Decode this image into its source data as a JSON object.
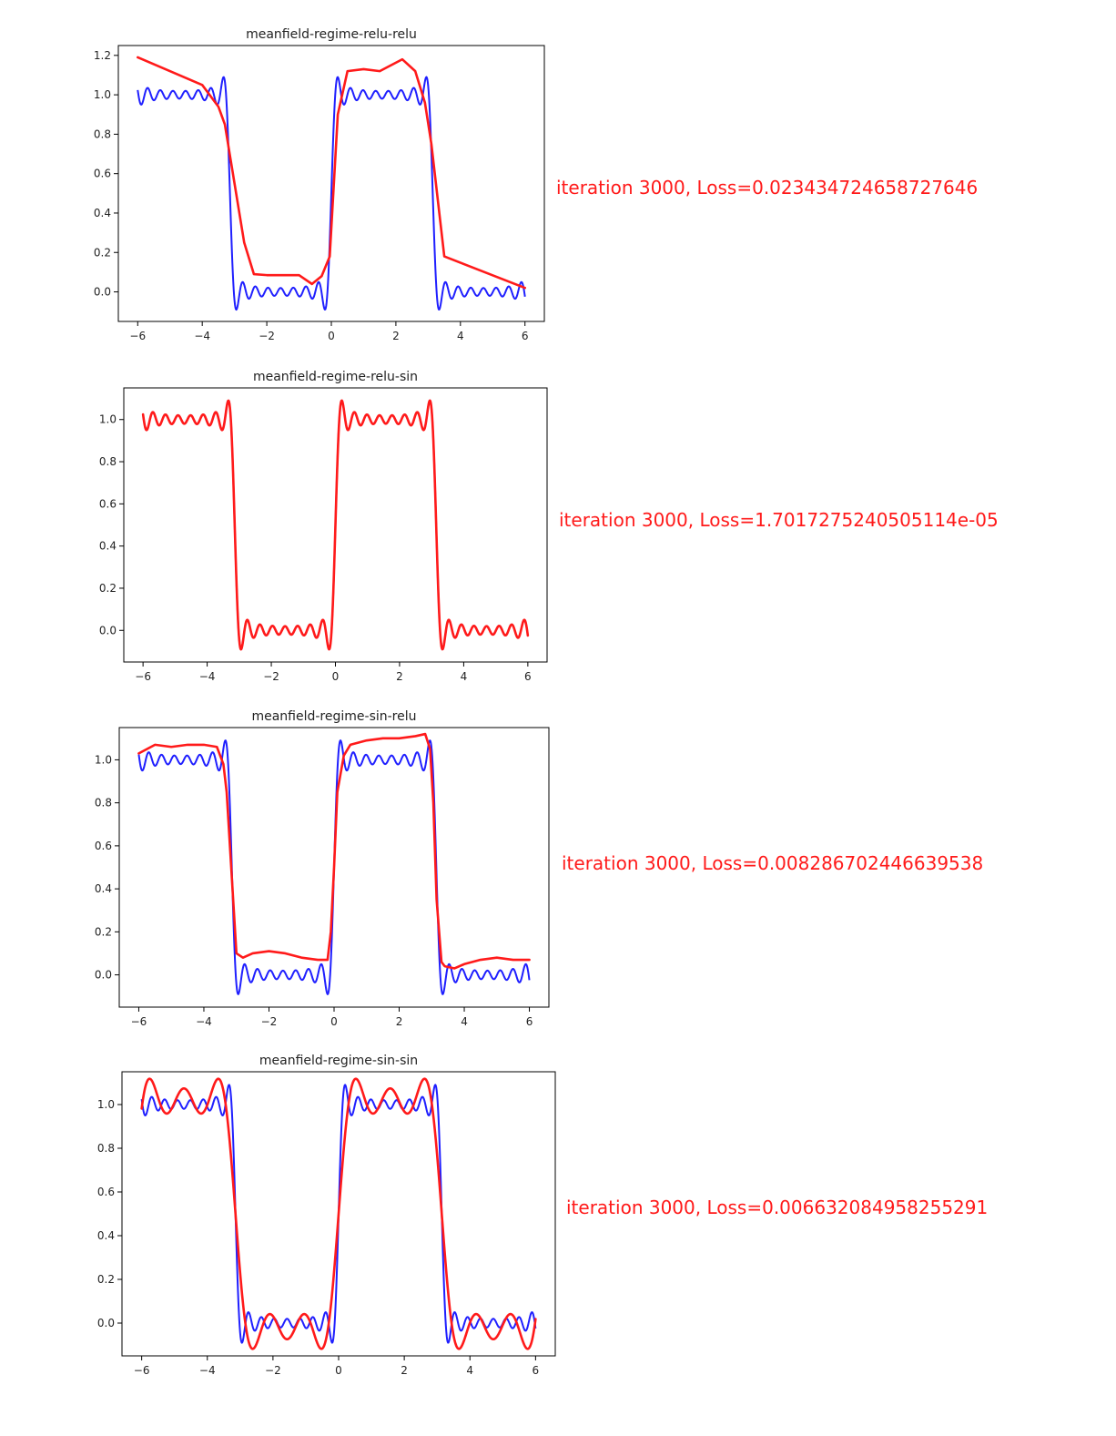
{
  "colors": {
    "target": "#1f1fff",
    "fit": "#ff1a1a",
    "loss_text": "#ff1a1a"
  },
  "chart_data": [
    {
      "type": "line",
      "title": "meanfield-regime-relu-relu",
      "xlim": [
        -6.6,
        6.6
      ],
      "ylim": [
        -0.15,
        1.25
      ],
      "xticks": [
        -6,
        -4,
        -2,
        0,
        2,
        4,
        6
      ],
      "yticks": [
        0.0,
        0.2,
        0.4,
        0.6,
        0.8,
        1.0,
        1.2
      ],
      "target": {
        "harmonics": 15
      },
      "fit": {
        "x": [
          -6.0,
          -4.0,
          -3.5,
          -3.3,
          -3.0,
          -2.7,
          -2.4,
          -2.0,
          -1.5,
          -1.0,
          -0.6,
          -0.3,
          -0.05,
          0.2,
          0.5,
          1.0,
          1.5,
          2.2,
          2.6,
          2.9,
          3.1,
          3.5,
          6.0
        ],
        "y": [
          1.19,
          1.05,
          0.94,
          0.85,
          0.55,
          0.25,
          0.09,
          0.085,
          0.085,
          0.085,
          0.04,
          0.08,
          0.18,
          0.9,
          1.12,
          1.13,
          1.12,
          1.18,
          1.12,
          0.96,
          0.75,
          0.18,
          0.02
        ]
      },
      "annotation": "iteration 3000, Loss=0.023434724658727646"
    },
    {
      "type": "line",
      "title": "meanfield-regime-relu-sin",
      "xlim": [
        -6.6,
        6.6
      ],
      "ylim": [
        -0.15,
        1.15
      ],
      "xticks": [
        -6,
        -4,
        -2,
        0,
        2,
        4,
        6
      ],
      "yticks": [
        0.0,
        0.2,
        0.4,
        0.6,
        0.8,
        1.0
      ],
      "target": {
        "harmonics": 15
      },
      "fit": {
        "mode": "target",
        "harmonics": 15
      },
      "annotation": "iteration 3000, Loss=1.7017275240505114e-05"
    },
    {
      "type": "line",
      "title": "meanfield-regime-sin-relu",
      "xlim": [
        -6.6,
        6.6
      ],
      "ylim": [
        -0.15,
        1.15
      ],
      "xticks": [
        -6,
        -4,
        -2,
        0,
        2,
        4,
        6
      ],
      "yticks": [
        0.0,
        0.2,
        0.4,
        0.6,
        0.8,
        1.0
      ],
      "target": {
        "harmonics": 15
      },
      "fit": {
        "x": [
          -6.0,
          -5.5,
          -5.0,
          -4.5,
          -4.0,
          -3.6,
          -3.4,
          -3.3,
          -3.1,
          -3.0,
          -2.8,
          -2.5,
          -2.0,
          -1.5,
          -1.0,
          -0.5,
          -0.2,
          -0.1,
          0.0,
          0.1,
          0.3,
          0.5,
          1.0,
          1.5,
          2.0,
          2.5,
          2.8,
          2.95,
          3.05,
          3.15,
          3.3,
          3.4,
          3.7,
          4.0,
          4.5,
          5.0,
          5.5,
          6.0
        ],
        "y": [
          1.03,
          1.07,
          1.06,
          1.07,
          1.07,
          1.06,
          0.98,
          0.85,
          0.35,
          0.1,
          0.08,
          0.1,
          0.11,
          0.1,
          0.08,
          0.07,
          0.07,
          0.2,
          0.5,
          0.85,
          1.02,
          1.07,
          1.09,
          1.1,
          1.1,
          1.11,
          1.12,
          1.05,
          0.8,
          0.35,
          0.06,
          0.04,
          0.03,
          0.05,
          0.07,
          0.08,
          0.07,
          0.07
        ]
      },
      "annotation": "iteration 3000, Loss=0.008286702446639538"
    },
    {
      "type": "line",
      "title": "meanfield-regime-sin-sin",
      "xlim": [
        -6.6,
        6.6
      ],
      "ylim": [
        -0.15,
        1.15
      ],
      "xticks": [
        -6,
        -4,
        -2,
        0,
        2,
        4,
        6
      ],
      "yticks": [
        0.0,
        0.2,
        0.4,
        0.6,
        0.8,
        1.0
      ],
      "target": {
        "harmonics": 15
      },
      "fit": {
        "mode": "partial",
        "harmonics": 5,
        "amp": 1.04
      },
      "annotation": "iteration 3000, Loss=0.006632084958255291"
    }
  ]
}
